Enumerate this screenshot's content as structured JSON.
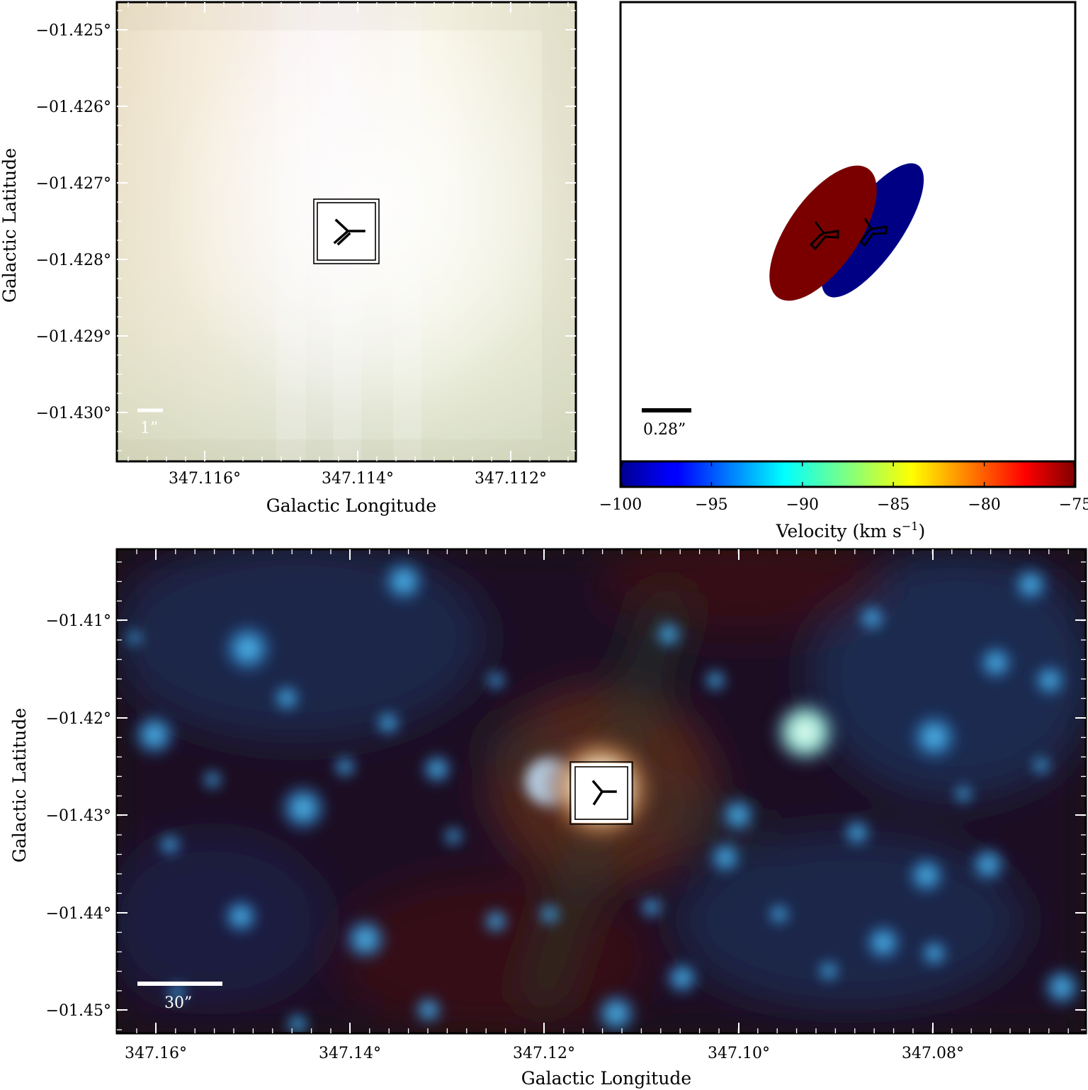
{
  "colors": {
    "red_lobe": "#7a0000",
    "blue_lobe": "#000085",
    "scale_white": "#ffffff",
    "scale_black": "#000000"
  },
  "top_left": {
    "y_ticks": [
      "−01.425°",
      "−01.426°",
      "−01.427°",
      "−01.428°",
      "−01.429°",
      "−01.430°"
    ],
    "x_ticks": [
      "347.116°",
      "347.114°",
      "347.112°"
    ],
    "xlabel": "Galactic Longitude",
    "ylabel": "Galactic Latitude",
    "scale_label": "1”",
    "marker_icon": "maser-symbol-icon"
  },
  "top_right": {
    "scale_label": "0.28”",
    "colorbar_ticks": [
      "−100",
      "−95",
      "−90",
      "−85",
      "−80",
      "−75"
    ],
    "colorbar_label": "Velocity (km s",
    "colorbar_label_sup": "−1",
    "colorbar_label_end": ")",
    "colorbar_range": [
      -100,
      -75
    ],
    "colormap": "jet",
    "lobes": [
      {
        "color": "red",
        "velocity_note": "redshifted"
      },
      {
        "color": "blue",
        "velocity_note": "blueshifted"
      }
    ]
  },
  "bottom": {
    "y_ticks": [
      "−01.41°",
      "−01.42°",
      "−01.43°",
      "−01.44°",
      "−01.45°"
    ],
    "x_ticks": [
      "347.16°",
      "347.14°",
      "347.12°",
      "347.10°",
      "347.08°"
    ],
    "xlabel": "Galactic Longitude",
    "ylabel": "Galactic Latitude",
    "scale_label": "30”",
    "marker_icon": "maser-symbol-icon"
  }
}
